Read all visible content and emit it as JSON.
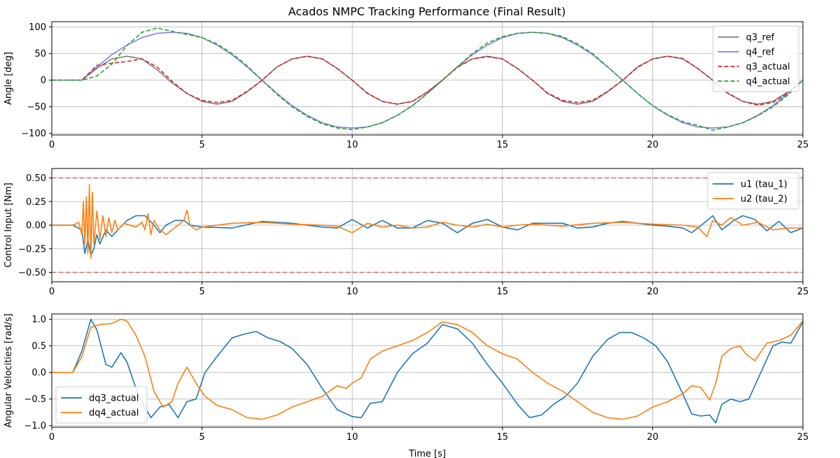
{
  "figure_title": "Acados NMPC Tracking Performance (Final Result)",
  "colors": {
    "q3_ref": "#808080",
    "q4_ref": "#8080f0",
    "q3_actual": "#d62728",
    "q4_actual": "#2ca02c",
    "u1": "#1f77b4",
    "u2": "#ff7f0e",
    "limit": "#e06666",
    "grid": "#b0b0b0"
  },
  "chart_data": [
    {
      "type": "line",
      "title": "Acados NMPC Tracking Performance (Final Result)",
      "xlabel": "",
      "ylabel": "Angle [deg]",
      "xlim": [
        0,
        25
      ],
      "ylim": [
        -103,
        110
      ],
      "xticks": [
        0,
        5,
        10,
        15,
        20,
        25
      ],
      "yticks": [
        -100,
        -50,
        0,
        50,
        100
      ],
      "grid": true,
      "legend": "top-right",
      "series": [
        {
          "name": "q3_ref",
          "style": "solid",
          "x": [
            0,
            1,
            1.5,
            2,
            2.5,
            3,
            3.5,
            4,
            4.5,
            5,
            5.5,
            6,
            6.5,
            7,
            7.5,
            8,
            8.5,
            9,
            9.5,
            10,
            10.5,
            11,
            11.5,
            12,
            12.5,
            13,
            13.5,
            14,
            14.5,
            15,
            15.5,
            16,
            16.5,
            17,
            17.5,
            18,
            18.5,
            19,
            19.5,
            20,
            20.5,
            21,
            21.5,
            22,
            22.5,
            23,
            23.5,
            24,
            24.5,
            25
          ],
          "y": [
            0,
            0,
            22,
            40,
            45,
            40,
            20,
            -5,
            -25,
            -40,
            -45,
            -40,
            -22,
            0,
            25,
            40,
            45,
            40,
            22,
            0,
            -25,
            -40,
            -45,
            -40,
            -22,
            0,
            25,
            40,
            45,
            40,
            22,
            0,
            -25,
            -40,
            -45,
            -40,
            -22,
            0,
            25,
            40,
            45,
            40,
            22,
            0,
            -25,
            -40,
            -45,
            -40,
            -22,
            0
          ]
        },
        {
          "name": "q4_ref",
          "style": "solid",
          "x": [
            0,
            1,
            1.5,
            2,
            2.5,
            3,
            3.5,
            4,
            4.5,
            5,
            5.5,
            6,
            6.5,
            7,
            7.5,
            8,
            8.5,
            9,
            9.5,
            10,
            10.5,
            11,
            11.5,
            12,
            12.5,
            13,
            13.5,
            14,
            14.5,
            15,
            15.5,
            16,
            16.5,
            17,
            17.5,
            18,
            18.5,
            19,
            19.5,
            20,
            20.5,
            21,
            21.5,
            22,
            22.5,
            23,
            23.5,
            24,
            24.5,
            25
          ],
          "y": [
            0,
            0,
            25,
            48,
            66,
            80,
            88,
            90,
            88,
            80,
            66,
            48,
            25,
            0,
            -25,
            -48,
            -66,
            -80,
            -88,
            -90,
            -88,
            -80,
            -66,
            -48,
            -25,
            0,
            25,
            48,
            66,
            80,
            88,
            90,
            88,
            80,
            66,
            48,
            25,
            0,
            -25,
            -48,
            -66,
            -80,
            -88,
            -90,
            -88,
            -80,
            -66,
            -48,
            -25,
            0
          ]
        },
        {
          "name": "q3_actual",
          "style": "dashed",
          "x": [
            0,
            1,
            1.5,
            2,
            2.5,
            3,
            3.5,
            4,
            4.5,
            5,
            5.5,
            6,
            6.5,
            7,
            7.5,
            8,
            8.5,
            9,
            9.5,
            10,
            10.5,
            11,
            11.5,
            12,
            12.5,
            13,
            13.5,
            14,
            14.5,
            15,
            15.5,
            16,
            16.5,
            17,
            17.5,
            18,
            18.5,
            19,
            19.5,
            20,
            20.5,
            21,
            21.5,
            22,
            22.5,
            23,
            23.5,
            24,
            24.5,
            25
          ],
          "y": [
            0,
            0,
            28,
            32,
            35,
            40,
            25,
            -2,
            -25,
            -38,
            -42,
            -38,
            -21,
            0,
            25,
            40,
            45,
            40,
            22,
            0,
            -24,
            -40,
            -45,
            -40,
            -22,
            0,
            24,
            40,
            44,
            40,
            22,
            0,
            -24,
            -38,
            -42,
            -38,
            -21,
            0,
            24,
            40,
            45,
            41,
            22,
            0,
            -24,
            -40,
            -47,
            -42,
            -24,
            0
          ]
        },
        {
          "name": "q4_actual",
          "style": "dashed",
          "x": [
            0,
            1,
            1.5,
            2,
            2.5,
            3,
            3.5,
            4,
            4.5,
            5,
            5.5,
            6,
            6.5,
            7,
            7.5,
            8,
            8.5,
            9,
            9.5,
            10,
            10.5,
            11,
            11.5,
            12,
            12.5,
            13,
            13.5,
            14,
            14.5,
            15,
            15.5,
            16,
            16.5,
            17,
            17.5,
            18,
            18.5,
            19,
            19.5,
            20,
            20.5,
            21,
            21.5,
            22,
            22.5,
            23,
            23.5,
            24,
            24.5,
            25
          ],
          "y": [
            0,
            0,
            8,
            30,
            65,
            90,
            98,
            92,
            86,
            80,
            68,
            50,
            27,
            0,
            -27,
            -50,
            -68,
            -82,
            -90,
            -93,
            -88,
            -80,
            -66,
            -48,
            -25,
            0,
            25,
            50,
            70,
            82,
            88,
            90,
            88,
            82,
            68,
            50,
            25,
            0,
            -25,
            -48,
            -65,
            -78,
            -85,
            -94,
            -88,
            -80,
            -67,
            -50,
            -28,
            0
          ]
        }
      ]
    },
    {
      "type": "line",
      "title": "",
      "xlabel": "",
      "ylabel": "Control Input [Nm]",
      "xlim": [
        0,
        25
      ],
      "ylim": [
        -0.6,
        0.6
      ],
      "xticks": [
        0,
        5,
        10,
        15,
        20,
        25
      ],
      "yticks": [
        -0.5,
        -0.25,
        0.0,
        0.25,
        0.5
      ],
      "ytick_labels": [
        "−0.50",
        "−0.25",
        "0.00",
        "0.25",
        "0.50"
      ],
      "hlines": [
        0.5,
        -0.5
      ],
      "grid": true,
      "legend": "top-right",
      "series": [
        {
          "name": "u1 (tau_1)",
          "x": [
            0,
            0.7,
            1.0,
            1.1,
            1.2,
            1.3,
            1.4,
            1.5,
            1.6,
            1.8,
            2.0,
            2.2,
            2.5,
            2.8,
            3.1,
            3.4,
            3.6,
            3.8,
            4.1,
            4.4,
            4.6,
            5.0,
            6.0,
            7.0,
            8.0,
            9.0,
            9.5,
            10.0,
            10.5,
            11.0,
            11.5,
            12.0,
            12.5,
            13.0,
            13.5,
            14.0,
            14.5,
            15.0,
            15.5,
            16.0,
            16.5,
            17.0,
            17.5,
            18.0,
            18.5,
            19.0,
            19.5,
            20.0,
            20.5,
            21.0,
            21.3,
            21.7,
            22.0,
            22.3,
            22.7,
            23.0,
            23.4,
            23.8,
            24.2,
            24.6,
            25.0
          ],
          "y": [
            0,
            0,
            -0.05,
            -0.3,
            -0.15,
            -0.32,
            -0.25,
            -0.1,
            -0.2,
            -0.05,
            -0.12,
            -0.05,
            0.05,
            0.1,
            0.1,
            0.0,
            -0.08,
            0.0,
            0.05,
            0.05,
            0.0,
            -0.02,
            -0.03,
            0.04,
            0.02,
            -0.02,
            -0.03,
            0.06,
            -0.03,
            0.05,
            -0.03,
            -0.03,
            0.05,
            0.02,
            -0.08,
            0.02,
            0.06,
            -0.02,
            -0.05,
            0.02,
            0.02,
            0.02,
            -0.03,
            -0.02,
            0.02,
            0.04,
            0.02,
            0.0,
            -0.01,
            -0.03,
            -0.08,
            0.02,
            0.1,
            -0.05,
            0.05,
            0.1,
            0.06,
            -0.06,
            0.04,
            -0.08,
            -0.03
          ]
        },
        {
          "name": "u2 (tau_2)",
          "x": [
            0,
            0.7,
            0.9,
            1.0,
            1.05,
            1.1,
            1.15,
            1.2,
            1.25,
            1.3,
            1.35,
            1.4,
            1.5,
            1.6,
            1.7,
            1.8,
            1.9,
            2.0,
            2.1,
            2.2,
            2.4,
            2.6,
            2.8,
            3.0,
            3.1,
            3.2,
            3.3,
            3.4,
            3.6,
            3.8,
            4.0,
            4.2,
            4.4,
            4.5,
            4.6,
            4.8,
            5.0,
            6.0,
            7.0,
            8.0,
            9.0,
            9.5,
            10.0,
            10.5,
            11.0,
            11.5,
            12.0,
            12.5,
            13.0,
            13.5,
            14.0,
            14.5,
            15.0,
            15.5,
            16.0,
            17.0,
            18.0,
            19.0,
            20.0,
            21.0,
            21.5,
            21.8,
            22.0,
            22.3,
            22.6,
            23.0,
            23.5,
            24.0,
            24.5,
            25.0
          ],
          "y": [
            0,
            0,
            0.03,
            -0.1,
            0.25,
            -0.2,
            0.3,
            -0.3,
            0.43,
            -0.35,
            0.35,
            -0.2,
            0.15,
            -0.15,
            0.1,
            -0.12,
            0.08,
            -0.08,
            0.05,
            -0.05,
            0.02,
            0.0,
            -0.02,
            0.03,
            -0.05,
            0.12,
            -0.1,
            0.05,
            -0.05,
            -0.1,
            -0.05,
            0.0,
            0.05,
            0.16,
            0.0,
            -0.05,
            -0.02,
            0.02,
            0.03,
            0.01,
            0.0,
            -0.01,
            -0.08,
            0.02,
            -0.02,
            0.0,
            -0.03,
            -0.02,
            0.03,
            0.0,
            -0.02,
            0.01,
            -0.02,
            0.0,
            0.01,
            -0.01,
            0.02,
            0.03,
            0.01,
            0.0,
            -0.02,
            -0.12,
            0.05,
            0.0,
            0.08,
            0.0,
            0.03,
            -0.05,
            -0.03,
            -0.03
          ]
        }
      ]
    },
    {
      "type": "line",
      "title": "",
      "xlabel": "Time [s]",
      "ylabel": "Angular Velocities [rad/s]",
      "xlim": [
        0,
        25
      ],
      "ylim": [
        -1.03,
        1.1
      ],
      "xticks": [
        0,
        5,
        10,
        15,
        20,
        25
      ],
      "yticks": [
        -1.0,
        -0.5,
        0.0,
        0.5,
        1.0
      ],
      "ytick_labels": [
        "−1.0",
        "−0.5",
        "0.0",
        "0.5",
        "1.0"
      ],
      "grid": true,
      "legend": "bottom-left",
      "series": [
        {
          "name": "dq3_actual",
          "x": [
            0,
            0.7,
            1.0,
            1.3,
            1.5,
            1.8,
            2.0,
            2.3,
            2.5,
            2.8,
            3.0,
            3.3,
            3.6,
            3.9,
            4.2,
            4.5,
            4.8,
            5.1,
            5.5,
            6.0,
            6.4,
            6.8,
            7.2,
            7.6,
            8.0,
            8.5,
            9.0,
            9.5,
            10.0,
            10.3,
            10.6,
            11.0,
            11.5,
            12.0,
            12.5,
            13.0,
            13.5,
            14.0,
            14.5,
            15.0,
            15.5,
            15.9,
            16.3,
            16.7,
            17.1,
            17.5,
            18.0,
            18.5,
            18.9,
            19.3,
            19.7,
            20.1,
            20.5,
            21.0,
            21.3,
            21.6,
            21.9,
            22.1,
            22.3,
            22.6,
            22.9,
            23.2,
            23.6,
            24.0,
            24.3,
            24.6,
            25.0
          ],
          "y": [
            0,
            0,
            0.4,
            1.0,
            0.8,
            0.15,
            0.1,
            0.37,
            0.2,
            -0.3,
            -0.55,
            -0.85,
            -0.65,
            -0.6,
            -0.85,
            -0.55,
            -0.5,
            0.0,
            0.3,
            0.65,
            0.72,
            0.77,
            0.65,
            0.58,
            0.45,
            0.15,
            -0.3,
            -0.7,
            -0.83,
            -0.85,
            -0.58,
            -0.55,
            0.0,
            0.35,
            0.55,
            0.9,
            0.82,
            0.55,
            0.15,
            -0.2,
            -0.6,
            -0.85,
            -0.8,
            -0.6,
            -0.45,
            -0.2,
            0.3,
            0.62,
            0.75,
            0.75,
            0.65,
            0.5,
            0.2,
            -0.4,
            -0.78,
            -0.82,
            -0.8,
            -0.95,
            -0.6,
            -0.5,
            -0.55,
            -0.5,
            0.0,
            0.5,
            0.57,
            0.55,
            0.95
          ]
        },
        {
          "name": "dq4_actual",
          "x": [
            0,
            0.7,
            1.0,
            1.3,
            1.6,
            2.0,
            2.3,
            2.5,
            2.8,
            3.1,
            3.4,
            3.7,
            4.0,
            4.2,
            4.5,
            4.8,
            5.1,
            5.5,
            6.0,
            6.5,
            7.0,
            7.5,
            8.0,
            8.5,
            9.0,
            9.5,
            9.8,
            10.0,
            10.3,
            10.6,
            11.0,
            11.5,
            12.0,
            12.5,
            13.0,
            13.5,
            14.0,
            14.5,
            15.0,
            15.5,
            16.0,
            16.5,
            17.0,
            17.5,
            18.0,
            18.5,
            19.0,
            19.5,
            20.0,
            20.5,
            21.0,
            21.3,
            21.6,
            21.9,
            22.1,
            22.3,
            22.6,
            22.9,
            23.1,
            23.4,
            23.8,
            24.2,
            24.6,
            25.0
          ],
          "y": [
            0,
            0,
            0.3,
            0.85,
            0.9,
            0.92,
            1.0,
            0.97,
            0.7,
            0.3,
            -0.35,
            -0.65,
            -0.55,
            -0.2,
            0.1,
            -0.2,
            -0.45,
            -0.62,
            -0.7,
            -0.85,
            -0.88,
            -0.8,
            -0.65,
            -0.55,
            -0.45,
            -0.25,
            -0.3,
            -0.2,
            -0.1,
            0.25,
            0.4,
            0.5,
            0.6,
            0.75,
            0.95,
            0.9,
            0.75,
            0.5,
            0.35,
            0.25,
            0.0,
            -0.2,
            -0.35,
            -0.55,
            -0.75,
            -0.85,
            -0.88,
            -0.82,
            -0.65,
            -0.55,
            -0.4,
            -0.25,
            -0.28,
            -0.52,
            -0.2,
            0.3,
            0.45,
            0.5,
            0.35,
            0.22,
            0.55,
            0.6,
            0.7,
            0.97
          ]
        }
      ]
    }
  ]
}
